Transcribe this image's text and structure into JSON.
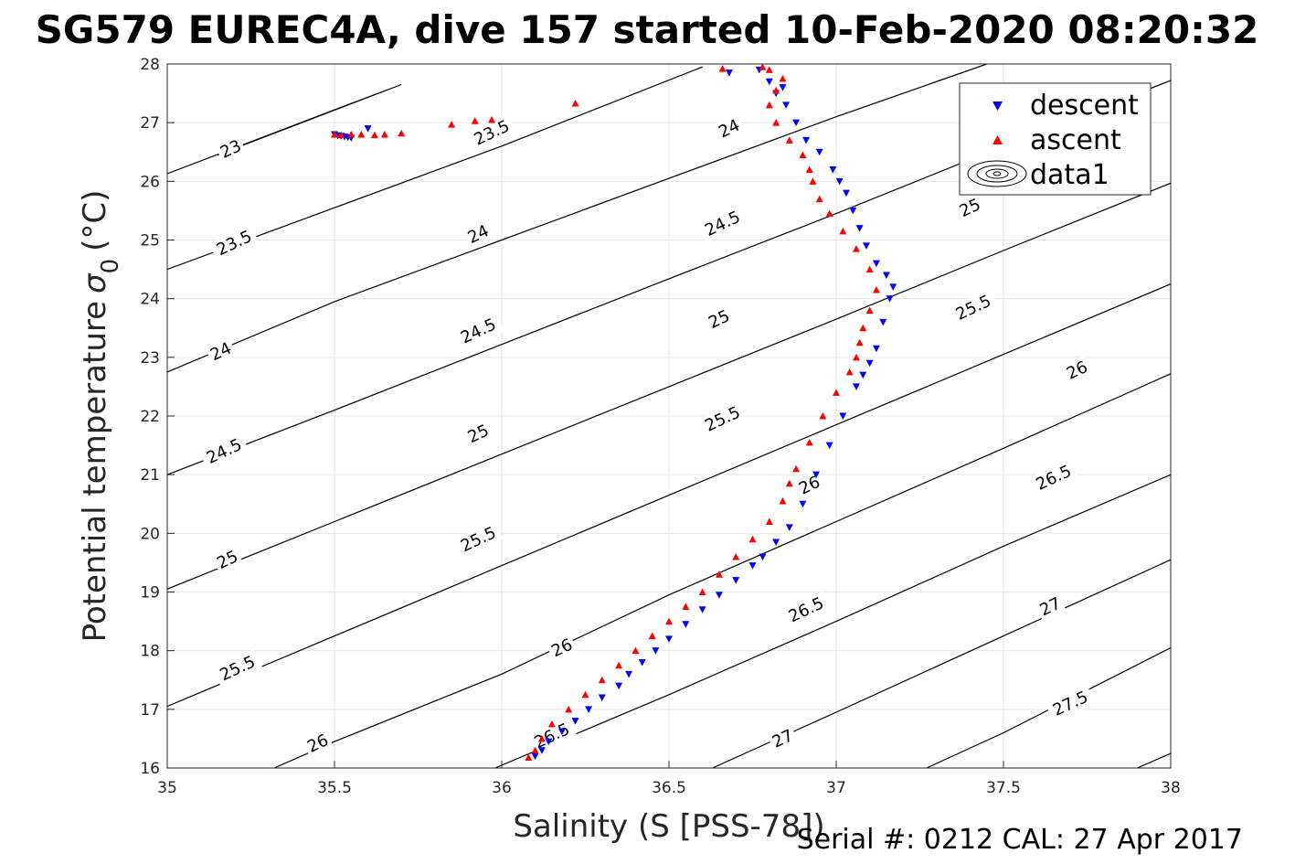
{
  "chart_data": {
    "type": "scatter",
    "title": "SG579 EUREC4A, dive 157 started 10-Feb-2020 08:20:32",
    "xlabel": "Salinity (S [PSS-78])",
    "ylabel": "Potential temperature",
    "ylabel_symbol": "σ",
    "ylabel_sub": "0",
    "ylabel_unit": "(°C)",
    "footer": "Serial #: 0212  CAL: 27 Apr 2017",
    "xlim": [
      35,
      38
    ],
    "ylim": [
      16,
      28
    ],
    "xticks": [
      35,
      35.5,
      36,
      36.5,
      37,
      37.5,
      38
    ],
    "xtick_labels": [
      "35",
      "35.5",
      "36",
      "36.5",
      "37",
      "37.5",
      "38"
    ],
    "yticks": [
      16,
      17,
      18,
      19,
      20,
      21,
      22,
      23,
      24,
      25,
      26,
      27,
      28
    ],
    "ytick_labels": [
      "16",
      "17",
      "18",
      "19",
      "20",
      "21",
      "22",
      "23",
      "24",
      "25",
      "26",
      "27",
      "28"
    ],
    "grid": true,
    "legend": {
      "position": "top-right",
      "entries": [
        {
          "label": "descent",
          "marker": "triangle-down",
          "color": "#0000ff"
        },
        {
          "label": "ascent",
          "marker": "triangle-up",
          "color": "#ff0000"
        },
        {
          "label": "data1",
          "marker": "contour"
        }
      ]
    },
    "isopycnals": [
      {
        "sigma": 23,
        "points": [
          [
            35.0,
            26.13
          ],
          [
            35.5,
            27.22
          ],
          [
            35.7,
            27.65
          ],
          [
            35.15,
            26.45
          ]
        ],
        "labels": [
          {
            "text": "23",
            "at": [
              35.19,
              26.55
            ]
          }
        ]
      },
      {
        "sigma": 23.5,
        "points": [
          [
            35.0,
            24.5
          ],
          [
            35.5,
            25.55
          ],
          [
            36.0,
            26.6
          ],
          [
            36.6,
            27.95
          ]
        ],
        "labels": [
          {
            "text": "23.5",
            "at": [
              35.2,
              24.95
            ]
          },
          {
            "text": "23.5",
            "at": [
              35.97,
              26.83
            ]
          }
        ]
      },
      {
        "sigma": 24,
        "points": [
          [
            35.0,
            22.75
          ],
          [
            35.5,
            23.95
          ],
          [
            36.0,
            25.0
          ],
          [
            36.5,
            26.05
          ],
          [
            37.0,
            27.1
          ],
          [
            37.45,
            28.0
          ]
        ],
        "labels": [
          {
            "text": "24",
            "at": [
              35.16,
              23.1
            ]
          },
          {
            "text": "24",
            "at": [
              35.93,
              25.1
            ]
          },
          {
            "text": "24",
            "at": [
              36.68,
              26.9
            ]
          }
        ]
      },
      {
        "sigma": 24.5,
        "points": [
          [
            35.0,
            21.0
          ],
          [
            35.5,
            22.1
          ],
          [
            36.0,
            23.22
          ],
          [
            36.5,
            24.34
          ],
          [
            37.0,
            25.45
          ],
          [
            37.5,
            26.6
          ],
          [
            38.0,
            27.72
          ]
        ],
        "labels": [
          {
            "text": "24.5",
            "at": [
              35.17,
              21.4
            ]
          },
          {
            "text": "24.5",
            "at": [
              35.93,
              23.45
            ]
          },
          {
            "text": "24.5",
            "at": [
              36.66,
              25.28
            ]
          }
        ]
      },
      {
        "sigma": 25,
        "points": [
          [
            35.0,
            19.05
          ],
          [
            35.5,
            20.2
          ],
          [
            36.0,
            21.35
          ],
          [
            36.5,
            22.5
          ],
          [
            37.0,
            23.65
          ],
          [
            37.5,
            24.82
          ],
          [
            38.0,
            25.97
          ]
        ],
        "labels": [
          {
            "text": "25",
            "at": [
              35.18,
              19.55
            ]
          },
          {
            "text": "25",
            "at": [
              35.93,
              21.7
            ]
          },
          {
            "text": "25",
            "at": [
              36.65,
              23.65
            ]
          },
          {
            "text": "25",
            "at": [
              37.4,
              25.55
            ]
          }
        ]
      },
      {
        "sigma": 25.5,
        "points": [
          [
            35.0,
            17.05
          ],
          [
            35.5,
            18.25
          ],
          [
            36.0,
            19.45
          ],
          [
            36.5,
            20.65
          ],
          [
            37.0,
            21.85
          ],
          [
            37.5,
            23.05
          ],
          [
            38.0,
            24.25
          ]
        ],
        "labels": [
          {
            "text": "25.5",
            "at": [
              35.21,
              17.7
            ]
          },
          {
            "text": "25.5",
            "at": [
              35.93,
              19.9
            ]
          },
          {
            "text": "25.5",
            "at": [
              36.66,
              21.95
            ]
          },
          {
            "text": "25.5",
            "at": [
              37.41,
              23.85
            ]
          }
        ]
      },
      {
        "sigma": 26,
        "points": [
          [
            35.32,
            16.0
          ],
          [
            35.5,
            16.45
          ],
          [
            36.0,
            17.6
          ],
          [
            36.5,
            18.95
          ],
          [
            37.0,
            20.2
          ],
          [
            37.5,
            21.45
          ],
          [
            38.0,
            22.72
          ]
        ],
        "labels": [
          {
            "text": "26",
            "at": [
              35.45,
              16.42
            ]
          },
          {
            "text": "26",
            "at": [
              36.18,
              18.05
            ]
          },
          {
            "text": "26",
            "at": [
              36.92,
              20.82
            ]
          },
          {
            "text": "26",
            "at": [
              37.72,
              22.78
            ]
          }
        ]
      },
      {
        "sigma": 26.5,
        "points": [
          [
            35.98,
            16.0
          ],
          [
            36.5,
            17.25
          ],
          [
            37.0,
            18.5
          ],
          [
            37.5,
            19.78
          ],
          [
            38.0,
            21.0
          ]
        ],
        "labels": [
          {
            "text": "26.5",
            "at": [
              36.15,
              16.55
            ]
          },
          {
            "text": "26.5",
            "at": [
              36.91,
              18.7
            ]
          },
          {
            "text": "26.5",
            "at": [
              37.65,
              20.95
            ]
          }
        ]
      },
      {
        "sigma": 27,
        "points": [
          [
            36.63,
            16.0
          ],
          [
            37.0,
            16.95
          ],
          [
            37.5,
            18.25
          ],
          [
            38.0,
            19.55
          ]
        ],
        "labels": [
          {
            "text": "27",
            "at": [
              36.84,
              16.5
            ]
          },
          {
            "text": "27",
            "at": [
              37.64,
              18.75
            ]
          }
        ]
      },
      {
        "sigma": 27.5,
        "points": [
          [
            37.27,
            16.0
          ],
          [
            37.5,
            16.6
          ],
          [
            38.0,
            18.05
          ]
        ],
        "labels": [
          {
            "text": "27.5",
            "at": [
              37.7,
              17.1
            ]
          }
        ]
      },
      {
        "sigma": 28,
        "points": [
          [
            37.9,
            16.0
          ],
          [
            38.0,
            16.25
          ]
        ],
        "labels": []
      }
    ],
    "series": [
      {
        "name": "descent",
        "marker": "triangle-down",
        "color": "#0000ff",
        "x": [
          35.5,
          35.51,
          35.52,
          35.53,
          35.54,
          35.55,
          35.6,
          36.1,
          36.12,
          36.14,
          36.18,
          36.22,
          36.26,
          36.3,
          36.35,
          36.38,
          36.42,
          36.46,
          36.5,
          36.55,
          36.6,
          36.65,
          36.7,
          36.75,
          36.78,
          36.82,
          36.86,
          36.9,
          36.94,
          36.98,
          37.02,
          37.06,
          37.08,
          37.1,
          37.12,
          37.14,
          37.16,
          37.17,
          37.15,
          37.12,
          37.09,
          37.07,
          37.05,
          37.03,
          37.01,
          36.99,
          36.95,
          36.91,
          36.88,
          36.85,
          36.82,
          36.84,
          36.8,
          36.77,
          36.68
        ],
        "y": [
          26.8,
          26.78,
          26.77,
          26.76,
          26.75,
          26.74,
          26.9,
          16.2,
          16.3,
          16.45,
          16.62,
          16.8,
          17.0,
          17.2,
          17.4,
          17.6,
          17.8,
          18.0,
          18.2,
          18.45,
          18.7,
          18.95,
          19.2,
          19.45,
          19.6,
          19.85,
          20.1,
          20.5,
          21.0,
          21.5,
          22.0,
          22.5,
          22.7,
          22.9,
          23.15,
          23.6,
          24.0,
          24.2,
          24.4,
          24.6,
          24.9,
          25.2,
          25.5,
          25.8,
          26.0,
          26.2,
          26.5,
          26.7,
          27.0,
          27.3,
          27.5,
          27.6,
          27.7,
          27.9,
          27.85
        ]
      },
      {
        "name": "ascent",
        "marker": "triangle-up",
        "color": "#ff0000",
        "x": [
          35.5,
          35.52,
          35.55,
          35.58,
          35.62,
          35.65,
          35.7,
          35.85,
          35.92,
          35.97,
          36.22,
          36.08,
          36.1,
          36.12,
          36.15,
          36.2,
          36.25,
          36.3,
          36.35,
          36.4,
          36.45,
          36.5,
          36.55,
          36.6,
          36.65,
          36.7,
          36.75,
          36.8,
          36.84,
          36.86,
          36.88,
          36.92,
          36.96,
          37.0,
          37.04,
          37.06,
          37.07,
          37.08,
          37.1,
          37.12,
          37.1,
          37.06,
          37.02,
          36.98,
          36.95,
          36.93,
          36.92,
          36.9,
          36.86,
          36.82,
          36.8,
          36.82,
          36.84,
          36.8,
          36.78,
          36.66
        ],
        "y": [
          26.8,
          26.79,
          26.8,
          26.8,
          26.79,
          26.8,
          26.82,
          26.97,
          27.03,
          27.05,
          27.33,
          16.18,
          16.3,
          16.5,
          16.75,
          17.0,
          17.25,
          17.5,
          17.75,
          18.0,
          18.25,
          18.5,
          18.75,
          19.0,
          19.3,
          19.6,
          19.9,
          20.2,
          20.55,
          20.85,
          21.1,
          21.55,
          22.0,
          22.4,
          22.75,
          23.0,
          23.25,
          23.5,
          23.8,
          24.15,
          24.5,
          24.85,
          25.15,
          25.45,
          25.7,
          26.0,
          26.2,
          26.45,
          26.7,
          27.0,
          27.3,
          27.55,
          27.75,
          27.9,
          27.95,
          27.92
        ]
      }
    ]
  }
}
